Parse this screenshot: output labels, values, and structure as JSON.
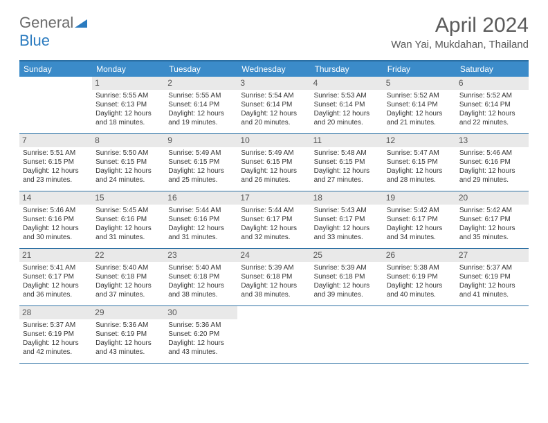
{
  "logo": {
    "general": "General",
    "blue": "Blue"
  },
  "title": "April 2024",
  "location": "Wan Yai, Mukdahan, Thailand",
  "colors": {
    "header_bg": "#3b8bc9",
    "border": "#2b6fa3",
    "daynum_bg": "#e9e9e9",
    "text": "#333333",
    "title_text": "#5a5a5a",
    "logo_gray": "#6b6b6b",
    "logo_blue": "#2b7bbf"
  },
  "day_names": [
    "Sunday",
    "Monday",
    "Tuesday",
    "Wednesday",
    "Thursday",
    "Friday",
    "Saturday"
  ],
  "start_offset": 1,
  "days": [
    {
      "n": 1,
      "sunrise": "5:55 AM",
      "sunset": "6:13 PM",
      "daylight": "12 hours and 18 minutes."
    },
    {
      "n": 2,
      "sunrise": "5:55 AM",
      "sunset": "6:14 PM",
      "daylight": "12 hours and 19 minutes."
    },
    {
      "n": 3,
      "sunrise": "5:54 AM",
      "sunset": "6:14 PM",
      "daylight": "12 hours and 20 minutes."
    },
    {
      "n": 4,
      "sunrise": "5:53 AM",
      "sunset": "6:14 PM",
      "daylight": "12 hours and 20 minutes."
    },
    {
      "n": 5,
      "sunrise": "5:52 AM",
      "sunset": "6:14 PM",
      "daylight": "12 hours and 21 minutes."
    },
    {
      "n": 6,
      "sunrise": "5:52 AM",
      "sunset": "6:14 PM",
      "daylight": "12 hours and 22 minutes."
    },
    {
      "n": 7,
      "sunrise": "5:51 AM",
      "sunset": "6:15 PM",
      "daylight": "12 hours and 23 minutes."
    },
    {
      "n": 8,
      "sunrise": "5:50 AM",
      "sunset": "6:15 PM",
      "daylight": "12 hours and 24 minutes."
    },
    {
      "n": 9,
      "sunrise": "5:49 AM",
      "sunset": "6:15 PM",
      "daylight": "12 hours and 25 minutes."
    },
    {
      "n": 10,
      "sunrise": "5:49 AM",
      "sunset": "6:15 PM",
      "daylight": "12 hours and 26 minutes."
    },
    {
      "n": 11,
      "sunrise": "5:48 AM",
      "sunset": "6:15 PM",
      "daylight": "12 hours and 27 minutes."
    },
    {
      "n": 12,
      "sunrise": "5:47 AM",
      "sunset": "6:15 PM",
      "daylight": "12 hours and 28 minutes."
    },
    {
      "n": 13,
      "sunrise": "5:46 AM",
      "sunset": "6:16 PM",
      "daylight": "12 hours and 29 minutes."
    },
    {
      "n": 14,
      "sunrise": "5:46 AM",
      "sunset": "6:16 PM",
      "daylight": "12 hours and 30 minutes."
    },
    {
      "n": 15,
      "sunrise": "5:45 AM",
      "sunset": "6:16 PM",
      "daylight": "12 hours and 31 minutes."
    },
    {
      "n": 16,
      "sunrise": "5:44 AM",
      "sunset": "6:16 PM",
      "daylight": "12 hours and 31 minutes."
    },
    {
      "n": 17,
      "sunrise": "5:44 AM",
      "sunset": "6:17 PM",
      "daylight": "12 hours and 32 minutes."
    },
    {
      "n": 18,
      "sunrise": "5:43 AM",
      "sunset": "6:17 PM",
      "daylight": "12 hours and 33 minutes."
    },
    {
      "n": 19,
      "sunrise": "5:42 AM",
      "sunset": "6:17 PM",
      "daylight": "12 hours and 34 minutes."
    },
    {
      "n": 20,
      "sunrise": "5:42 AM",
      "sunset": "6:17 PM",
      "daylight": "12 hours and 35 minutes."
    },
    {
      "n": 21,
      "sunrise": "5:41 AM",
      "sunset": "6:17 PM",
      "daylight": "12 hours and 36 minutes."
    },
    {
      "n": 22,
      "sunrise": "5:40 AM",
      "sunset": "6:18 PM",
      "daylight": "12 hours and 37 minutes."
    },
    {
      "n": 23,
      "sunrise": "5:40 AM",
      "sunset": "6:18 PM",
      "daylight": "12 hours and 38 minutes."
    },
    {
      "n": 24,
      "sunrise": "5:39 AM",
      "sunset": "6:18 PM",
      "daylight": "12 hours and 38 minutes."
    },
    {
      "n": 25,
      "sunrise": "5:39 AM",
      "sunset": "6:18 PM",
      "daylight": "12 hours and 39 minutes."
    },
    {
      "n": 26,
      "sunrise": "5:38 AM",
      "sunset": "6:19 PM",
      "daylight": "12 hours and 40 minutes."
    },
    {
      "n": 27,
      "sunrise": "5:37 AM",
      "sunset": "6:19 PM",
      "daylight": "12 hours and 41 minutes."
    },
    {
      "n": 28,
      "sunrise": "5:37 AM",
      "sunset": "6:19 PM",
      "daylight": "12 hours and 42 minutes."
    },
    {
      "n": 29,
      "sunrise": "5:36 AM",
      "sunset": "6:19 PM",
      "daylight": "12 hours and 43 minutes."
    },
    {
      "n": 30,
      "sunrise": "5:36 AM",
      "sunset": "6:20 PM",
      "daylight": "12 hours and 43 minutes."
    }
  ],
  "labels": {
    "sunrise": "Sunrise:",
    "sunset": "Sunset:",
    "daylight": "Daylight:"
  }
}
